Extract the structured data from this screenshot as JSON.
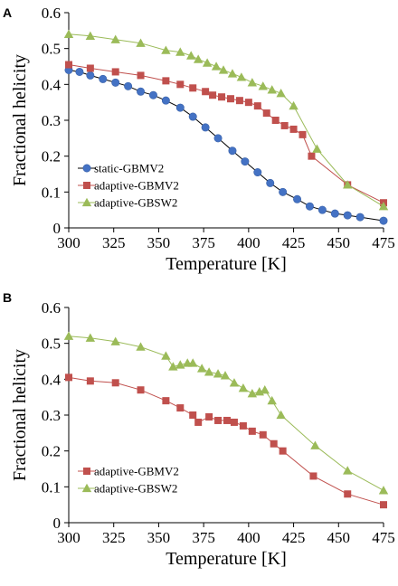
{
  "chart_data": [
    {
      "panel": "A",
      "type": "line",
      "xlabel": "Temperature [K]",
      "ylabel": "Fractional helicity",
      "xlim": [
        300,
        475
      ],
      "ylim": [
        0,
        0.6
      ],
      "xticks": [
        "300",
        "325",
        "350",
        "375",
        "400",
        "425",
        "450",
        "475"
      ],
      "yticks": [
        "0",
        "0.1",
        "0.2",
        "0.3",
        "0.4",
        "0.5",
        "0.6"
      ],
      "legend_position": "bottom-left",
      "series": [
        {
          "name": "static-GBMV2",
          "marker": "circle",
          "color": "#4472c4",
          "x": [
            300,
            306,
            312,
            319,
            326,
            333,
            340,
            347,
            354,
            362,
            369,
            376,
            383,
            391,
            398,
            405,
            412,
            419,
            427,
            434,
            441,
            448,
            455,
            462,
            475
          ],
          "y": [
            0.44,
            0.435,
            0.425,
            0.415,
            0.405,
            0.395,
            0.38,
            0.37,
            0.355,
            0.335,
            0.31,
            0.28,
            0.25,
            0.215,
            0.185,
            0.155,
            0.125,
            0.1,
            0.08,
            0.06,
            0.05,
            0.04,
            0.035,
            0.03,
            0.02
          ]
        },
        {
          "name": "adaptive-GBMV2",
          "marker": "square",
          "color": "#c0504d",
          "x": [
            300,
            312,
            326,
            340,
            354,
            362,
            369,
            376,
            380,
            385,
            390,
            395,
            400,
            405,
            410,
            415,
            420,
            425,
            430,
            435,
            455,
            475
          ],
          "y": [
            0.455,
            0.445,
            0.435,
            0.425,
            0.41,
            0.4,
            0.39,
            0.38,
            0.37,
            0.365,
            0.36,
            0.355,
            0.35,
            0.34,
            0.32,
            0.3,
            0.285,
            0.275,
            0.26,
            0.2,
            0.12,
            0.07
          ]
        },
        {
          "name": "adaptive-GBSW2",
          "marker": "triangle",
          "color": "#9bbb59",
          "x": [
            300,
            312,
            326,
            340,
            354,
            362,
            368,
            372,
            377,
            382,
            386,
            391,
            396,
            402,
            408,
            413,
            418,
            425,
            438,
            455,
            475
          ],
          "y": [
            0.54,
            0.535,
            0.525,
            0.515,
            0.495,
            0.49,
            0.48,
            0.47,
            0.46,
            0.45,
            0.44,
            0.43,
            0.42,
            0.405,
            0.395,
            0.385,
            0.375,
            0.34,
            0.22,
            0.12,
            0.06
          ]
        }
      ]
    },
    {
      "panel": "B",
      "type": "line",
      "xlabel": "Temperature [K]",
      "ylabel": "Fractional helicity",
      "xlim": [
        300,
        475
      ],
      "ylim": [
        0,
        0.6
      ],
      "xticks": [
        "300",
        "325",
        "350",
        "375",
        "400",
        "425",
        "450",
        "475"
      ],
      "yticks": [
        "0",
        "0.1",
        "0.2",
        "0.3",
        "0.4",
        "0.5",
        "0.6"
      ],
      "legend_position": "bottom-left",
      "series": [
        {
          "name": "adaptive-GBMV2",
          "marker": "square",
          "color": "#c0504d",
          "x": [
            300,
            312,
            326,
            340,
            354,
            362,
            369,
            372,
            378,
            383,
            388,
            392,
            397,
            402,
            408,
            414,
            419,
            436,
            455,
            475
          ],
          "y": [
            0.405,
            0.395,
            0.39,
            0.37,
            0.34,
            0.32,
            0.3,
            0.28,
            0.295,
            0.285,
            0.285,
            0.28,
            0.27,
            0.255,
            0.245,
            0.22,
            0.2,
            0.13,
            0.08,
            0.05
          ]
        },
        {
          "name": "adaptive-GBSW2",
          "marker": "triangle",
          "color": "#9bbb59",
          "x": [
            300,
            312,
            326,
            340,
            354,
            358,
            362,
            366,
            369,
            374,
            378,
            383,
            387,
            392,
            397,
            402,
            406,
            409,
            413,
            418,
            437,
            455,
            475
          ],
          "y": [
            0.52,
            0.515,
            0.505,
            0.49,
            0.465,
            0.435,
            0.44,
            0.445,
            0.445,
            0.43,
            0.42,
            0.415,
            0.41,
            0.39,
            0.375,
            0.36,
            0.365,
            0.37,
            0.34,
            0.3,
            0.215,
            0.145,
            0.09
          ]
        }
      ]
    }
  ]
}
